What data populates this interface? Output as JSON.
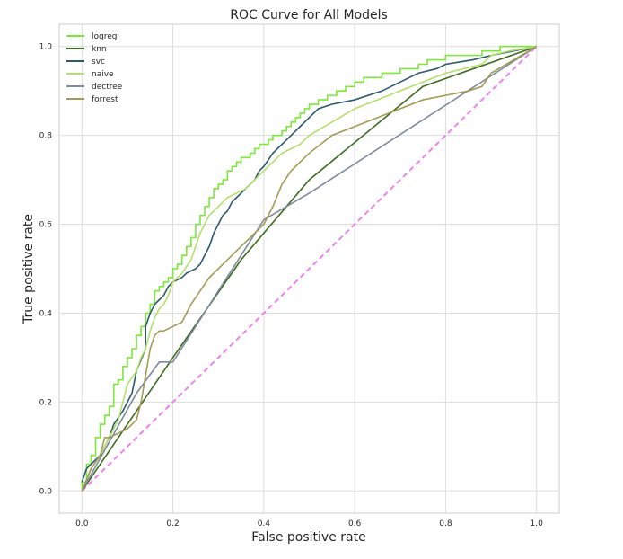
{
  "chart_data": {
    "type": "line",
    "title": "ROC Curve for All Models",
    "xlabel": "False positive rate",
    "ylabel": "True positive rate",
    "xlim": [
      -0.05,
      1.05
    ],
    "ylim": [
      -0.05,
      1.05
    ],
    "xticks": [
      "0.0",
      "0.2",
      "0.4",
      "0.6",
      "0.8",
      "1.0"
    ],
    "yticks": [
      "0.0",
      "0.2",
      "0.4",
      "0.6",
      "0.8",
      "1.0"
    ],
    "grid": true,
    "legend_position": "top-left",
    "series": [
      {
        "name": "logreg",
        "color": "#7ce83a",
        "x": [
          0,
          0,
          0.01,
          0.01,
          0.02,
          0.02,
          0.03,
          0.03,
          0.04,
          0.04,
          0.05,
          0.05,
          0.06,
          0.06,
          0.07,
          0.07,
          0.08,
          0.08,
          0.09,
          0.09,
          0.1,
          0.1,
          0.11,
          0.11,
          0.12,
          0.12,
          0.13,
          0.13,
          0.14,
          0.14,
          0.15,
          0.15,
          0.16,
          0.16,
          0.17,
          0.17,
          0.18,
          0.18,
          0.19,
          0.19,
          0.2,
          0.2,
          0.21,
          0.21,
          0.22,
          0.22,
          0.23,
          0.23,
          0.24,
          0.24,
          0.25,
          0.25,
          0.26,
          0.26,
          0.27,
          0.27,
          0.28,
          0.28,
          0.29,
          0.29,
          0.3,
          0.3,
          0.31,
          0.31,
          0.32,
          0.32,
          0.33,
          0.33,
          0.34,
          0.34,
          0.35,
          0.35,
          0.36,
          0.36,
          0.37,
          0.37,
          0.38,
          0.38,
          0.39,
          0.39,
          0.4,
          0.4,
          0.41,
          0.41,
          0.42,
          0.42,
          0.43,
          0.43,
          0.44,
          0.44,
          0.45,
          0.45,
          0.46,
          0.46,
          0.47,
          0.47,
          0.48,
          0.48,
          0.49,
          0.49,
          0.5,
          0.5,
          0.51,
          0.51,
          0.52,
          0.52,
          0.53,
          0.53,
          0.54,
          0.54,
          0.55,
          0.55,
          0.56,
          0.56,
          0.57,
          0.57,
          0.58,
          0.58,
          0.59,
          0.59,
          0.6,
          0.6,
          0.61,
          0.61,
          0.62,
          0.62,
          0.63,
          0.63,
          0.64,
          0.64,
          0.66,
          0.66,
          0.68,
          0.68,
          0.7,
          0.7,
          0.72,
          0.72,
          0.74,
          0.74,
          0.76,
          0.76,
          0.8,
          0.8,
          0.84,
          0.84,
          0.88,
          0.88,
          0.92,
          0.92,
          0.96,
          0.96,
          1.0
        ],
        "y": [
          0,
          0.02,
          0.02,
          0.06,
          0.06,
          0.08,
          0.08,
          0.12,
          0.12,
          0.15,
          0.15,
          0.17,
          0.17,
          0.19,
          0.19,
          0.24,
          0.24,
          0.25,
          0.25,
          0.28,
          0.28,
          0.3,
          0.3,
          0.32,
          0.32,
          0.35,
          0.35,
          0.37,
          0.37,
          0.4,
          0.4,
          0.42,
          0.42,
          0.45,
          0.45,
          0.46,
          0.46,
          0.47,
          0.47,
          0.48,
          0.48,
          0.5,
          0.5,
          0.51,
          0.51,
          0.53,
          0.53,
          0.55,
          0.55,
          0.57,
          0.57,
          0.6,
          0.6,
          0.62,
          0.62,
          0.64,
          0.64,
          0.66,
          0.66,
          0.68,
          0.68,
          0.69,
          0.69,
          0.7,
          0.7,
          0.72,
          0.72,
          0.73,
          0.73,
          0.74,
          0.74,
          0.75,
          0.75,
          0.75,
          0.75,
          0.76,
          0.76,
          0.77,
          0.77,
          0.78,
          0.78,
          0.78,
          0.78,
          0.79,
          0.79,
          0.8,
          0.8,
          0.8,
          0.8,
          0.81,
          0.81,
          0.82,
          0.82,
          0.83,
          0.83,
          0.84,
          0.84,
          0.85,
          0.85,
          0.86,
          0.86,
          0.87,
          0.87,
          0.87,
          0.87,
          0.88,
          0.88,
          0.88,
          0.88,
          0.89,
          0.89,
          0.89,
          0.89,
          0.9,
          0.9,
          0.9,
          0.9,
          0.91,
          0.91,
          0.91,
          0.91,
          0.92,
          0.92,
          0.92,
          0.92,
          0.93,
          0.93,
          0.93,
          0.93,
          0.93,
          0.93,
          0.94,
          0.94,
          0.94,
          0.94,
          0.95,
          0.95,
          0.95,
          0.95,
          0.96,
          0.96,
          0.97,
          0.97,
          0.98,
          0.98,
          0.98,
          0.98,
          0.99,
          0.99,
          1.0,
          1.0,
          1.0,
          1.0
        ]
      },
      {
        "name": "knn",
        "color": "#3d6b1f",
        "x": [
          0,
          0.1,
          0.2,
          0.35,
          0.5,
          0.75,
          1.0
        ],
        "y": [
          0,
          0.15,
          0.3,
          0.52,
          0.7,
          0.91,
          1.0
        ]
      },
      {
        "name": "svc",
        "color": "#2d5a6b",
        "x": [
          0,
          0.01,
          0.02,
          0.04,
          0.06,
          0.07,
          0.09,
          0.1,
          0.11,
          0.12,
          0.14,
          0.14,
          0.15,
          0.16,
          0.17,
          0.18,
          0.19,
          0.2,
          0.22,
          0.23,
          0.25,
          0.26,
          0.27,
          0.28,
          0.29,
          0.3,
          0.31,
          0.32,
          0.33,
          0.34,
          0.35,
          0.36,
          0.38,
          0.39,
          0.4,
          0.42,
          0.44,
          0.46,
          0.48,
          0.5,
          0.52,
          0.55,
          0.6,
          0.66,
          0.7,
          0.74,
          0.78,
          0.8,
          0.86,
          0.9,
          1.0
        ],
        "y": [
          0.02,
          0.05,
          0.06,
          0.08,
          0.12,
          0.15,
          0.18,
          0.2,
          0.22,
          0.27,
          0.32,
          0.37,
          0.4,
          0.42,
          0.43,
          0.44,
          0.46,
          0.47,
          0.48,
          0.49,
          0.5,
          0.51,
          0.53,
          0.55,
          0.58,
          0.6,
          0.62,
          0.63,
          0.65,
          0.66,
          0.67,
          0.68,
          0.7,
          0.72,
          0.73,
          0.76,
          0.78,
          0.8,
          0.82,
          0.84,
          0.86,
          0.87,
          0.88,
          0.9,
          0.92,
          0.94,
          0.95,
          0.96,
          0.97,
          0.98,
          1.0
        ]
      },
      {
        "name": "naive",
        "color": "#b3e06b",
        "x": [
          0,
          0.02,
          0.04,
          0.05,
          0.06,
          0.08,
          0.09,
          0.1,
          0.12,
          0.13,
          0.14,
          0.15,
          0.16,
          0.17,
          0.18,
          0.19,
          0.2,
          0.22,
          0.24,
          0.25,
          0.26,
          0.27,
          0.28,
          0.3,
          0.32,
          0.34,
          0.36,
          0.38,
          0.4,
          0.42,
          0.44,
          0.46,
          0.48,
          0.5,
          0.55,
          0.6,
          0.65,
          0.7,
          0.75,
          0.8,
          0.88,
          0.9,
          0.94,
          1.0
        ],
        "y": [
          0,
          0.05,
          0.08,
          0.1,
          0.12,
          0.16,
          0.2,
          0.24,
          0.27,
          0.3,
          0.32,
          0.36,
          0.39,
          0.41,
          0.42,
          0.44,
          0.47,
          0.49,
          0.52,
          0.55,
          0.58,
          0.6,
          0.62,
          0.64,
          0.66,
          0.67,
          0.68,
          0.7,
          0.72,
          0.74,
          0.76,
          0.77,
          0.78,
          0.8,
          0.83,
          0.86,
          0.88,
          0.9,
          0.92,
          0.94,
          0.96,
          0.98,
          0.99,
          1.0
        ]
      },
      {
        "name": "dectree",
        "color": "#7e8a9e",
        "x": [
          0,
          0.12,
          0.17,
          0.2,
          0.3,
          0.4,
          0.5,
          1.0
        ],
        "y": [
          0,
          0.22,
          0.29,
          0.29,
          0.45,
          0.61,
          0.67,
          1.0
        ]
      },
      {
        "name": "forrest",
        "color": "#a39b55",
        "x": [
          0,
          0.02,
          0.04,
          0.05,
          0.06,
          0.08,
          0.1,
          0.12,
          0.13,
          0.14,
          0.15,
          0.16,
          0.17,
          0.18,
          0.2,
          0.22,
          0.24,
          0.26,
          0.28,
          0.3,
          0.32,
          0.34,
          0.36,
          0.38,
          0.4,
          0.42,
          0.44,
          0.46,
          0.48,
          0.5,
          0.55,
          0.6,
          0.65,
          0.7,
          0.75,
          0.8,
          0.85,
          0.88,
          0.9,
          1.0
        ],
        "y": [
          0,
          0.05,
          0.08,
          0.12,
          0.12,
          0.13,
          0.14,
          0.16,
          0.2,
          0.26,
          0.32,
          0.35,
          0.36,
          0.36,
          0.37,
          0.38,
          0.42,
          0.45,
          0.48,
          0.5,
          0.52,
          0.54,
          0.56,
          0.58,
          0.6,
          0.64,
          0.69,
          0.72,
          0.74,
          0.76,
          0.8,
          0.82,
          0.84,
          0.86,
          0.88,
          0.89,
          0.9,
          0.91,
          0.94,
          1.0
        ]
      }
    ],
    "reference_line": {
      "x": [
        0,
        1
      ],
      "y": [
        0,
        1
      ],
      "color": "#ee82ee",
      "style": "dashed"
    }
  }
}
